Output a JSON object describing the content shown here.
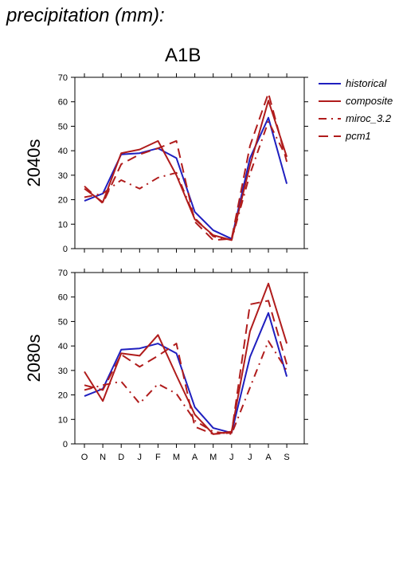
{
  "header": {
    "title": "precipitation (mm):",
    "scenario": "A1B"
  },
  "chart_data": {
    "type": "line",
    "categories": [
      "O",
      "N",
      "D",
      "J",
      "F",
      "M",
      "A",
      "M",
      "J",
      "J",
      "A",
      "S"
    ],
    "ylim": [
      0,
      70
    ],
    "yticks": [
      0,
      10,
      20,
      30,
      40,
      50,
      60,
      70
    ],
    "grid": false,
    "legend_position": "right",
    "series_styles": [
      {
        "name": "historical",
        "color": "#1f1fbf",
        "dash": ""
      },
      {
        "name": "composite",
        "color": "#b01c1c",
        "dash": ""
      },
      {
        "name": "miroc_3.2",
        "color": "#b01c1c",
        "dash": "10 6 2 6"
      },
      {
        "name": "pcm1",
        "color": "#b01c1c",
        "dash": "12 7"
      }
    ],
    "panels": [
      {
        "label": "2040s",
        "series": [
          {
            "name": "historical",
            "values": [
              19.5,
              22.5,
              38.5,
              39,
              41,
              37,
              15,
              7.5,
              4,
              37,
              53.5,
              26.5
            ]
          },
          {
            "name": "composite",
            "values": [
              24.5,
              19,
              39,
              40.5,
              44,
              30,
              12,
              5.5,
              3.5,
              34,
              60.5,
              37.5
            ]
          },
          {
            "name": "miroc_3.2",
            "values": [
              21,
              22.5,
              28,
              24.5,
              29,
              31,
              12.5,
              5,
              3.5,
              30.5,
              52,
              37
            ]
          },
          {
            "name": "pcm1",
            "values": [
              25.5,
              18.5,
              34.5,
              38.5,
              41,
              44,
              11,
              3.5,
              4,
              42,
              63.5,
              35.5
            ]
          }
        ]
      },
      {
        "label": "2080s",
        "series": [
          {
            "name": "historical",
            "values": [
              19.5,
              22.5,
              38.5,
              39,
              41,
              37,
              15,
              6.5,
              4.5,
              35.5,
              53.5,
              27.5
            ]
          },
          {
            "name": "composite",
            "values": [
              29.5,
              17.5,
              37,
              36,
              44.5,
              28,
              12,
              4,
              5,
              46,
              65.5,
              41
            ]
          },
          {
            "name": "miroc_3.2",
            "values": [
              22,
              24,
              25.5,
              16.5,
              24.5,
              20.5,
              9.5,
              5,
              4,
              23,
              42,
              30
            ]
          },
          {
            "name": "pcm1",
            "values": [
              24,
              22,
              36.5,
              31.5,
              36,
              41,
              7,
              4,
              4.5,
              57,
              58.5,
              32.5
            ]
          }
        ]
      }
    ]
  }
}
